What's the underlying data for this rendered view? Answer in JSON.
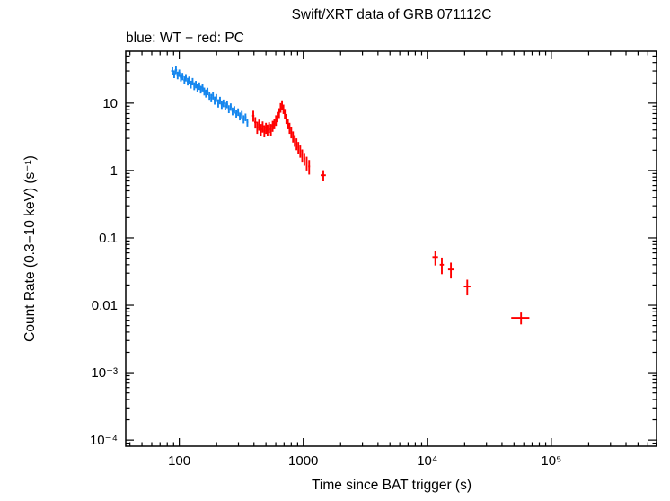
{
  "page": {
    "title": "Swift/XRT data of GRB 071112C"
  },
  "chart_data": {
    "type": "scatter",
    "title": "Swift/XRT data of GRB 071112C",
    "legend": "blue: WT − red: PC",
    "xlabel": "Time since BAT trigger (s)",
    "ylabel": "Count Rate (0.3−10 keV) (s⁻¹)",
    "xscale": "log",
    "yscale": "log",
    "xlim": [
      37,
      705000
    ],
    "ylim": [
      8.1e-05,
      59
    ],
    "grid": false,
    "x_ticks": [
      {
        "value": 100,
        "label": "100"
      },
      {
        "value": 1000,
        "label": "1000"
      },
      {
        "value": 10000,
        "label": "10⁴"
      },
      {
        "value": 100000,
        "label": "10⁵"
      }
    ],
    "y_ticks": [
      {
        "value": 10,
        "label": "10"
      },
      {
        "value": 1,
        "label": "1"
      },
      {
        "value": 0.1,
        "label": "0.1"
      },
      {
        "value": 0.01,
        "label": "0.01"
      },
      {
        "value": 0.001,
        "label": "10⁻³"
      },
      {
        "value": 0.0001,
        "label": "10⁻⁴"
      }
    ],
    "series": [
      {
        "name": "WT",
        "color": "#1486ee",
        "point_format": [
          "time_s",
          "time_err_s",
          "rate",
          "rate_err"
        ],
        "points": [
          [
            88,
            2,
            30,
            4
          ],
          [
            91,
            2,
            27,
            3.5
          ],
          [
            94,
            2,
            31,
            4
          ],
          [
            97,
            2,
            26,
            3.4
          ],
          [
            100,
            2,
            28,
            3.5
          ],
          [
            103,
            2,
            24,
            3
          ],
          [
            106,
            2,
            25,
            3.1
          ],
          [
            110,
            2,
            22,
            2.9
          ],
          [
            113,
            2,
            24,
            3
          ],
          [
            117,
            2,
            21,
            2.7
          ],
          [
            120,
            2,
            22,
            2.8
          ],
          [
            124,
            2,
            19,
            2.5
          ],
          [
            128,
            2,
            21,
            2.6
          ],
          [
            132,
            2,
            18,
            2.4
          ],
          [
            136,
            2,
            19,
            2.4
          ],
          [
            140,
            2,
            17,
            2.2
          ],
          [
            145,
            2,
            18,
            2.3
          ],
          [
            149,
            2,
            16,
            2.1
          ],
          [
            154,
            3,
            17,
            2.1
          ],
          [
            159,
            3,
            15,
            2
          ],
          [
            164,
            3,
            14,
            1.9
          ],
          [
            169,
            3,
            15,
            1.9
          ],
          [
            175,
            3,
            13,
            1.8
          ],
          [
            181,
            3,
            12,
            1.7
          ],
          [
            187,
            3,
            13,
            1.7
          ],
          [
            193,
            3,
            11,
            1.5
          ],
          [
            199,
            3,
            12,
            1.6
          ],
          [
            206,
            3,
            10,
            1.4
          ],
          [
            213,
            4,
            11,
            1.4
          ],
          [
            220,
            4,
            9.5,
            1.3
          ],
          [
            227,
            4,
            10,
            1.3
          ],
          [
            235,
            4,
            9,
            1.2
          ],
          [
            243,
            4,
            9.6,
            1.2
          ],
          [
            251,
            4,
            8.2,
            1.1
          ],
          [
            260,
            4,
            8.8,
            1.1
          ],
          [
            269,
            5,
            7.6,
            1
          ],
          [
            278,
            5,
            8,
            1
          ],
          [
            288,
            5,
            7,
            0.9
          ],
          [
            298,
            5,
            7.4,
            0.95
          ],
          [
            308,
            5,
            6.4,
            0.85
          ],
          [
            319,
            5,
            6.8,
            0.85
          ],
          [
            330,
            6,
            5.8,
            0.8
          ],
          [
            342,
            6,
            6.2,
            0.8
          ],
          [
            354,
            6,
            5.2,
            0.7
          ]
        ]
      },
      {
        "name": "PC",
        "color": "#ff0000",
        "point_format": [
          "time_s",
          "time_err_s",
          "rate",
          "rate_err"
        ],
        "points": [
          [
            395,
            8,
            6.5,
            1.2
          ],
          [
            410,
            8,
            5.2,
            1
          ],
          [
            425,
            8,
            4.4,
            0.9
          ],
          [
            440,
            8,
            4.8,
            0.9
          ],
          [
            455,
            8,
            4.1,
            0.8
          ],
          [
            470,
            8,
            4.5,
            0.85
          ],
          [
            485,
            8,
            3.9,
            0.8
          ],
          [
            500,
            8,
            4.3,
            0.8
          ],
          [
            515,
            8,
            4,
            0.8
          ],
          [
            530,
            8,
            4.4,
            0.8
          ],
          [
            548,
            9,
            4.1,
            0.8
          ],
          [
            566,
            9,
            4.6,
            0.85
          ],
          [
            584,
            9,
            5,
            0.9
          ],
          [
            602,
            9,
            5.6,
            1
          ],
          [
            620,
            9,
            6.3,
            1.1
          ],
          [
            638,
            9,
            7.2,
            1.2
          ],
          [
            656,
            9,
            8.6,
            1.4
          ],
          [
            674,
            9,
            9.5,
            1.5
          ],
          [
            692,
            9,
            8.2,
            1.3
          ],
          [
            710,
            10,
            7,
            1.2
          ],
          [
            730,
            10,
            5.9,
            1
          ],
          [
            752,
            10,
            5,
            0.9
          ],
          [
            775,
            10,
            4.3,
            0.8
          ],
          [
            800,
            11,
            3.7,
            0.7
          ],
          [
            826,
            11,
            3.2,
            0.6
          ],
          [
            853,
            11,
            2.8,
            0.55
          ],
          [
            882,
            12,
            2.5,
            0.5
          ],
          [
            912,
            12,
            2.2,
            0.45
          ],
          [
            945,
            13,
            1.95,
            0.4
          ],
          [
            980,
            14,
            1.7,
            0.35
          ],
          [
            1020,
            15,
            1.5,
            0.32
          ],
          [
            1065,
            16,
            1.3,
            0.3
          ],
          [
            1115,
            18,
            1.15,
            0.28
          ],
          [
            1450,
            70,
            0.85,
            0.16
          ],
          [
            11600,
            600,
            0.052,
            0.013
          ],
          [
            13100,
            500,
            0.04,
            0.011
          ],
          [
            15500,
            800,
            0.034,
            0.009
          ],
          [
            21000,
            1300,
            0.019,
            0.005
          ],
          [
            57000,
            9500,
            0.0065,
            0.0013
          ]
        ]
      }
    ]
  },
  "style": {
    "frame_color": "#000000",
    "wt_color": "#1486ee",
    "pc_color": "#ff0000"
  }
}
